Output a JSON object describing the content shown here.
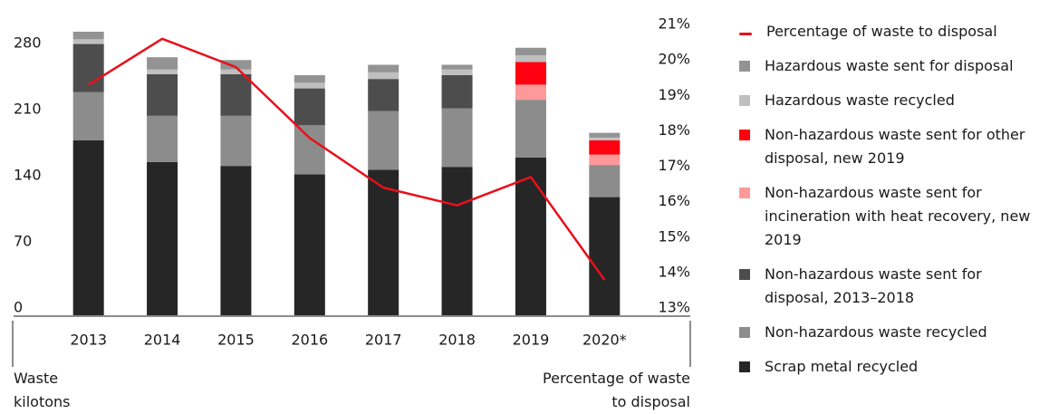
{
  "chart_data": {
    "type": "bar",
    "stacked": true,
    "categories": [
      "2013",
      "2014",
      "2015",
      "2016",
      "2017",
      "2018",
      "2019",
      "2020*"
    ],
    "series": [
      {
        "name": "Scrap metal recycled",
        "color": "#262626",
        "values": [
          185,
          162,
          158,
          149,
          154,
          157,
          167,
          125
        ]
      },
      {
        "name": "Non-hazardous waste recycled",
        "color": "#8c8c8c",
        "values": [
          51,
          49,
          53,
          52,
          62,
          62,
          61,
          34
        ]
      },
      {
        "name": "Non-hazardous waste sent for disposal, 2013–2018",
        "color": "#4d4d4d",
        "values": [
          51,
          44,
          44,
          39,
          34,
          35,
          null,
          null
        ]
      },
      {
        "name": "Non-hazardous waste sent for incineration with heat recovery, new 2019",
        "color": "#ff9999",
        "values": [
          null,
          null,
          null,
          null,
          null,
          null,
          16,
          11
        ]
      },
      {
        "name": "Non-hazardous waste sent for other disposal, new 2019",
        "color": "#ff0010",
        "values": [
          null,
          null,
          null,
          null,
          null,
          null,
          24,
          15
        ]
      },
      {
        "name": "Hazardous waste recycled",
        "color": "#bfbfbf",
        "values": [
          5,
          5,
          5,
          6,
          7,
          6,
          7,
          3
        ]
      },
      {
        "name": "Hazardous waste sent for disposal",
        "color": "#939393",
        "values": [
          8,
          13,
          10,
          8,
          8,
          5,
          8,
          5
        ]
      },
      {
        "name": "Percentage of waste to disposal",
        "type": "line",
        "axis": "y2",
        "color": "#e8101a",
        "values": [
          19.5,
          20.8,
          20.0,
          18.0,
          16.6,
          16.1,
          16.9,
          14.0
        ]
      }
    ],
    "ylabel": "Waste kilotons",
    "y2label": "Percentage of waste to disposal",
    "ylim": [
      0,
      300
    ],
    "yticks": [
      0,
      70,
      140,
      210,
      280
    ],
    "y2lim": [
      13,
      21
    ],
    "y2ticks": [
      {
        "value": 13,
        "label": "13%"
      },
      {
        "value": 14,
        "label": "14%"
      },
      {
        "value": 15,
        "label": "15%"
      },
      {
        "value": 16,
        "label": "16%"
      },
      {
        "value": 17,
        "label": "17%"
      },
      {
        "value": 18,
        "label": "18%"
      },
      {
        "value": 19,
        "label": "19%"
      },
      {
        "value": 20,
        "label": "20%"
      },
      {
        "value": 21,
        "label": "21%"
      }
    ],
    "grid": false,
    "legend": "right"
  }
}
